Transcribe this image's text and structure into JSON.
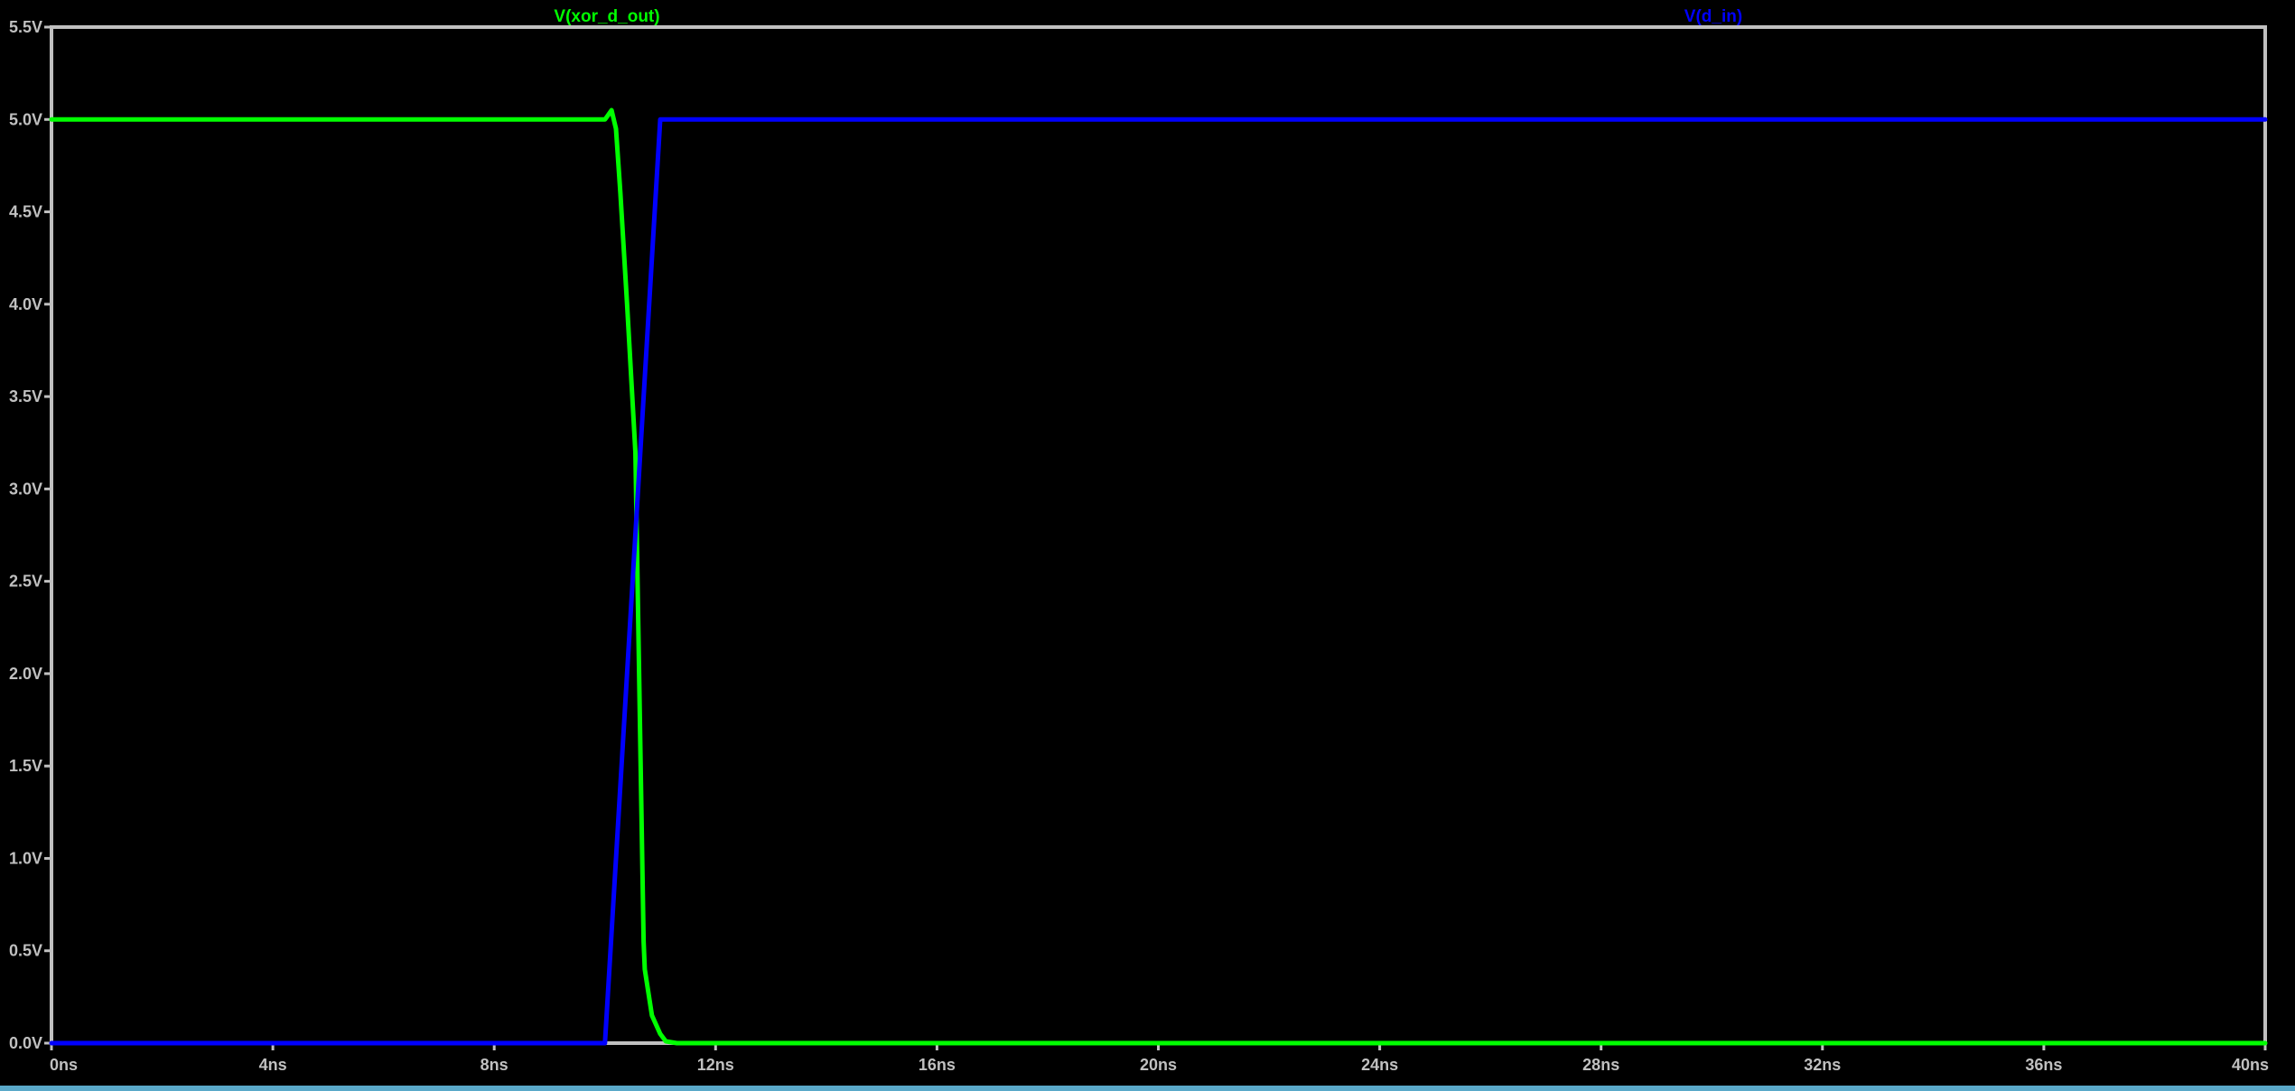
{
  "window": {
    "background": "#000000",
    "frame_color": "#c0c0c0"
  },
  "chart_data": {
    "type": "line",
    "title": "",
    "xlabel": "",
    "ylabel": "",
    "xlim": [
      0,
      40
    ],
    "ylim": [
      0,
      5.5
    ],
    "grid": false,
    "legend": "top",
    "x_ticks": [
      "0ns",
      "4ns",
      "8ns",
      "12ns",
      "16ns",
      "20ns",
      "24ns",
      "28ns",
      "32ns",
      "36ns",
      "40ns"
    ],
    "y_ticks": [
      "0.0V",
      "0.5V",
      "1.0V",
      "1.5V",
      "2.0V",
      "2.5V",
      "3.0V",
      "3.5V",
      "4.0V",
      "4.5V",
      "5.0V",
      "5.5V"
    ],
    "series": [
      {
        "name": "V(xor_d_out)",
        "color": "#00ff00",
        "x": [
          0,
          10.0,
          10.05,
          10.12,
          10.2,
          10.28,
          10.4,
          10.55,
          10.7,
          10.72,
          10.85,
          11.0,
          11.1,
          11.3,
          40
        ],
        "y": [
          5.0,
          5.0,
          5.02,
          5.05,
          4.95,
          4.6,
          4.0,
          3.2,
          0.55,
          0.4,
          0.15,
          0.05,
          0.01,
          0.0,
          0.0
        ]
      },
      {
        "name": "V(d_in)",
        "color": "#0000ff",
        "x": [
          0,
          10.0,
          10.5,
          11.0,
          40
        ],
        "y": [
          0.0,
          0.0,
          2.5,
          5.0,
          5.0
        ]
      }
    ]
  }
}
